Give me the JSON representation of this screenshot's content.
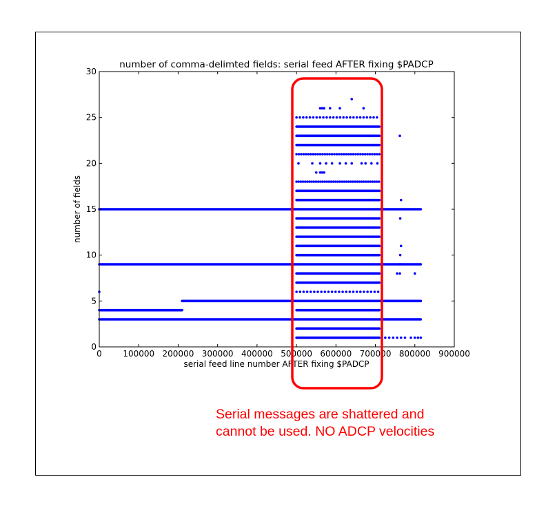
{
  "chart_data": {
    "type": "scatter",
    "title": "number of comma-delimted fields: serial feed AFTER fixing $PADCP",
    "xlabel": "serial feed line number AFTER fixing $PADCP",
    "ylabel": "number of fields",
    "xlim": [
      0,
      900000
    ],
    "ylim": [
      0,
      30
    ],
    "xticks": [
      "0",
      "100000",
      "200000",
      "300000",
      "400000",
      "500000",
      "600000",
      "700000",
      "800000",
      "900000"
    ],
    "yticks": [
      "0",
      "5",
      "10",
      "15",
      "20",
      "25",
      "30"
    ],
    "grid": false,
    "marker_color": "#0000ff",
    "series": [
      {
        "segments": [
          {
            "y": 15,
            "x": [
              0,
              815000
            ]
          },
          {
            "y": 9,
            "x": [
              0,
              815000
            ]
          },
          {
            "y": 3,
            "x": [
              0,
              815000
            ]
          },
          {
            "y": 4,
            "x": [
              0,
              210000
            ]
          },
          {
            "y": 5,
            "x": [
              210000,
              815000
            ]
          },
          {
            "y": 1,
            "x": [
              500000,
              710000
            ]
          },
          {
            "y": 2,
            "x": [
              500000,
              710000
            ]
          },
          {
            "y": 4,
            "x": [
              500000,
              710000
            ]
          },
          {
            "y": 7,
            "x": [
              500000,
              710000
            ]
          },
          {
            "y": 8,
            "x": [
              500000,
              710000
            ]
          },
          {
            "y": 10,
            "x": [
              500000,
              710000
            ]
          },
          {
            "y": 11,
            "x": [
              500000,
              710000
            ]
          },
          {
            "y": 12,
            "x": [
              500000,
              710000
            ]
          },
          {
            "y": 13,
            "x": [
              500000,
              710000
            ]
          },
          {
            "y": 14,
            "x": [
              500000,
              710000
            ]
          },
          {
            "y": 16,
            "x": [
              500000,
              710000
            ]
          },
          {
            "y": 17,
            "x": [
              500000,
              710000
            ]
          },
          {
            "y": 22,
            "x": [
              500000,
              710000
            ]
          },
          {
            "y": 23,
            "x": [
              500000,
              710000
            ]
          },
          {
            "y": 24,
            "x": [
              500000,
              710000
            ]
          }
        ],
        "dotted_rows": [
          {
            "y": 25,
            "x": [
              500000,
              710000
            ],
            "step": 8500
          },
          {
            "y": 21,
            "x": [
              500000,
              710000
            ],
            "step": 6000
          },
          {
            "y": 18,
            "x": [
              500000,
              710000
            ],
            "step": 5500
          },
          {
            "y": 6,
            "x": [
              500000,
              710000
            ],
            "step": 9000
          }
        ],
        "points": [
          [
            640000,
            27
          ],
          [
            560000,
            26
          ],
          [
            565000,
            26
          ],
          [
            570000,
            26
          ],
          [
            585000,
            26
          ],
          [
            610000,
            26
          ],
          [
            670000,
            26
          ],
          [
            505000,
            20
          ],
          [
            540000,
            20
          ],
          [
            560000,
            20
          ],
          [
            575000,
            20
          ],
          [
            590000,
            20
          ],
          [
            610000,
            20
          ],
          [
            625000,
            20
          ],
          [
            640000,
            20
          ],
          [
            665000,
            20
          ],
          [
            675000,
            20
          ],
          [
            690000,
            20
          ],
          [
            705000,
            20
          ],
          [
            550000,
            19
          ],
          [
            560000,
            19
          ],
          [
            565000,
            19
          ],
          [
            570000,
            19
          ],
          [
            0,
            6
          ],
          [
            762000,
            23
          ],
          [
            765000,
            16
          ],
          [
            763000,
            14
          ],
          [
            765000,
            11
          ],
          [
            763000,
            10
          ],
          [
            762000,
            9
          ],
          [
            755000,
            8
          ],
          [
            762000,
            8
          ],
          [
            800000,
            8
          ],
          [
            725000,
            1
          ],
          [
            735000,
            1
          ],
          [
            745000,
            1
          ],
          [
            755000,
            1
          ],
          [
            765000,
            1
          ],
          [
            775000,
            1
          ],
          [
            790000,
            1
          ],
          [
            800000,
            1
          ],
          [
            808000,
            1
          ],
          [
            815000,
            1
          ]
        ]
      }
    ]
  },
  "annotation": {
    "line1": "Serial messages are shattered and",
    "line2": "cannot be used.  NO ADCP velocities",
    "color": "#ff0000"
  }
}
